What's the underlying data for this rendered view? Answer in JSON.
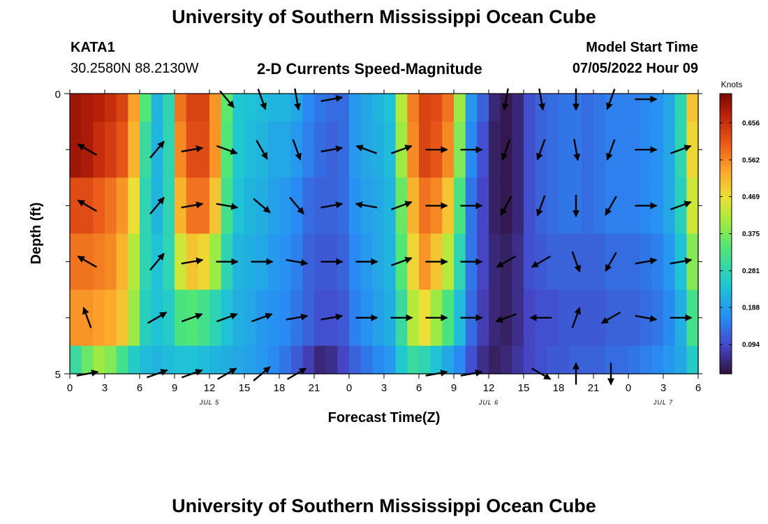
{
  "header": {
    "title": "University of Southern Mississippi Ocean Cube",
    "station_id": "KATA1",
    "station_coords": "30.2580N  88.2130W",
    "plot_title": "2-D Currents Speed-Magnitude",
    "model_start_label": "Model Start Time",
    "model_start_value": "07/05/2022 Hour 09"
  },
  "footer": {
    "title": "University of Southern Mississippi Ocean Cube"
  },
  "chart_data": {
    "type": "heatmap",
    "title": "2-D Currents Speed-Magnitude",
    "xlabel": "Forecast Time(Z)",
    "ylabel": "Depth (ft)",
    "x_tick_labels": [
      "0",
      "3",
      "6",
      "9",
      "12",
      "15",
      "18",
      "21",
      "0",
      "3",
      "6",
      "9",
      "12",
      "15",
      "18",
      "21",
      "0",
      "3",
      "6"
    ],
    "y_tick_labels": [
      "0",
      "5"
    ],
    "date_labels": [
      "JUL 5",
      "JUL 6",
      "JUL 7"
    ],
    "ylim": [
      0,
      5
    ],
    "colorbar": {
      "unit": "Knots",
      "tick_labels": [
        "0.656",
        "0.562",
        "0.469",
        "0.375",
        "0.281",
        "0.188",
        "0.094"
      ],
      "range": [
        0.02,
        0.73
      ]
    },
    "time_hours": [
      0,
      1,
      2,
      3,
      4,
      5,
      6,
      7,
      8,
      9,
      10,
      11,
      12,
      13,
      14,
      15,
      16,
      17,
      18,
      19,
      20,
      21,
      22,
      23,
      24,
      25,
      26,
      27,
      28,
      29,
      30,
      31,
      32,
      33,
      34,
      35,
      36,
      37,
      38,
      39,
      40,
      41,
      42,
      43,
      44,
      45,
      46,
      47,
      48,
      49,
      50,
      51,
      52,
      53,
      54
    ],
    "depth_levels_ft": [
      0,
      1,
      2,
      3,
      4,
      5
    ],
    "speed_knots": [
      [
        0.7,
        0.69,
        0.68,
        0.66,
        0.63,
        0.54,
        0.34,
        0.22,
        0.28,
        0.58,
        0.63,
        0.63,
        0.55,
        0.35,
        0.25,
        0.24,
        0.23,
        0.22,
        0.22,
        0.2,
        0.16,
        0.14,
        0.13,
        0.13,
        0.18,
        0.2,
        0.22,
        0.24,
        0.42,
        0.57,
        0.63,
        0.62,
        0.58,
        0.4,
        0.18,
        0.12,
        0.05,
        0.03,
        0.05,
        0.1,
        0.12,
        0.13,
        0.14,
        0.14,
        0.13,
        0.14,
        0.15,
        0.15,
        0.15,
        0.16,
        0.17,
        0.2,
        0.28,
        0.5,
        0.6
      ],
      [
        0.7,
        0.69,
        0.66,
        0.64,
        0.61,
        0.52,
        0.3,
        0.22,
        0.28,
        0.56,
        0.62,
        0.62,
        0.55,
        0.34,
        0.25,
        0.23,
        0.22,
        0.2,
        0.2,
        0.18,
        0.15,
        0.13,
        0.12,
        0.13,
        0.18,
        0.2,
        0.21,
        0.23,
        0.4,
        0.56,
        0.63,
        0.61,
        0.56,
        0.38,
        0.16,
        0.1,
        0.04,
        0.03,
        0.05,
        0.1,
        0.12,
        0.13,
        0.14,
        0.14,
        0.13,
        0.14,
        0.15,
        0.15,
        0.15,
        0.16,
        0.17,
        0.2,
        0.28,
        0.48,
        0.58
      ],
      [
        0.62,
        0.62,
        0.6,
        0.58,
        0.55,
        0.47,
        0.28,
        0.22,
        0.28,
        0.52,
        0.58,
        0.58,
        0.5,
        0.32,
        0.24,
        0.22,
        0.21,
        0.19,
        0.18,
        0.16,
        0.13,
        0.12,
        0.12,
        0.13,
        0.17,
        0.19,
        0.2,
        0.22,
        0.36,
        0.52,
        0.58,
        0.56,
        0.5,
        0.33,
        0.14,
        0.09,
        0.04,
        0.03,
        0.05,
        0.1,
        0.12,
        0.13,
        0.14,
        0.14,
        0.13,
        0.14,
        0.15,
        0.15,
        0.15,
        0.16,
        0.17,
        0.2,
        0.27,
        0.44,
        0.54
      ],
      [
        0.58,
        0.58,
        0.57,
        0.56,
        0.52,
        0.42,
        0.28,
        0.24,
        0.28,
        0.44,
        0.5,
        0.48,
        0.4,
        0.28,
        0.22,
        0.21,
        0.2,
        0.18,
        0.17,
        0.15,
        0.12,
        0.11,
        0.11,
        0.12,
        0.16,
        0.18,
        0.2,
        0.22,
        0.34,
        0.48,
        0.55,
        0.5,
        0.42,
        0.28,
        0.14,
        0.09,
        0.05,
        0.04,
        0.06,
        0.1,
        0.11,
        0.12,
        0.12,
        0.12,
        0.12,
        0.12,
        0.13,
        0.13,
        0.13,
        0.14,
        0.15,
        0.18,
        0.24,
        0.38,
        0.48
      ],
      [
        0.55,
        0.55,
        0.54,
        0.53,
        0.5,
        0.4,
        0.27,
        0.24,
        0.26,
        0.33,
        0.34,
        0.32,
        0.28,
        0.24,
        0.21,
        0.2,
        0.18,
        0.17,
        0.16,
        0.14,
        0.12,
        0.1,
        0.1,
        0.11,
        0.15,
        0.17,
        0.19,
        0.21,
        0.3,
        0.42,
        0.47,
        0.4,
        0.33,
        0.23,
        0.13,
        0.08,
        0.05,
        0.04,
        0.06,
        0.09,
        0.1,
        0.1,
        0.11,
        0.11,
        0.11,
        0.11,
        0.12,
        0.12,
        0.12,
        0.13,
        0.14,
        0.16,
        0.21,
        0.32,
        0.4
      ],
      [
        0.3,
        0.36,
        0.4,
        0.38,
        0.32,
        0.26,
        0.23,
        0.22,
        0.23,
        0.24,
        0.24,
        0.23,
        0.22,
        0.21,
        0.2,
        0.19,
        0.18,
        0.16,
        0.14,
        0.11,
        0.08,
        0.05,
        0.06,
        0.09,
        0.12,
        0.14,
        0.16,
        0.18,
        0.25,
        0.3,
        0.28,
        0.24,
        0.2,
        0.16,
        0.1,
        0.06,
        0.04,
        0.05,
        0.07,
        0.09,
        0.1,
        0.11,
        0.11,
        0.12,
        0.12,
        0.12,
        0.13,
        0.13,
        0.14,
        0.15,
        0.16,
        0.18,
        0.2,
        0.26,
        0.28
      ]
    ],
    "vector_times_hours": [
      1.5,
      4.5,
      7.5,
      10.5,
      13.5,
      16.5,
      19.5,
      22.5,
      25.5,
      28.5,
      31.5,
      34.5,
      37.5,
      40.5,
      43.5,
      46.5,
      49.5,
      52.5
    ],
    "vector_depths_ft": [
      0.1,
      1.0,
      2.0,
      3.0,
      4.0,
      5.0
    ],
    "vector_dir_deg": [
      [
        null,
        null,
        null,
        null,
        140,
        160,
        170,
        80,
        null,
        null,
        null,
        null,
        190,
        170,
        180,
        200,
        90,
        null
      ],
      [
        300,
        null,
        40,
        80,
        110,
        150,
        160,
        80,
        290,
        70,
        90,
        90,
        200,
        200,
        170,
        200,
        90,
        70
      ],
      [
        300,
        null,
        40,
        80,
        100,
        130,
        140,
        80,
        280,
        70,
        90,
        90,
        210,
        200,
        180,
        210,
        90,
        70
      ],
      [
        300,
        null,
        40,
        80,
        90,
        90,
        100,
        90,
        90,
        70,
        90,
        90,
        240,
        240,
        160,
        210,
        80,
        80
      ],
      [
        340,
        null,
        60,
        70,
        70,
        70,
        80,
        80,
        90,
        90,
        90,
        90,
        250,
        270,
        20,
        240,
        100,
        90
      ],
      [
        80,
        null,
        70,
        70,
        60,
        50,
        60,
        null,
        null,
        null,
        80,
        80,
        null,
        120,
        0,
        180,
        null,
        null
      ]
    ]
  }
}
